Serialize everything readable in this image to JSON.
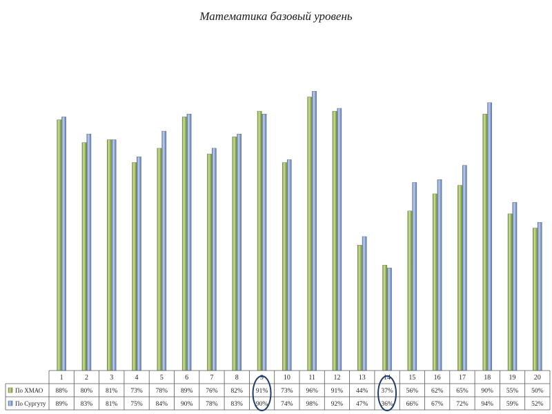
{
  "chart_data": {
    "type": "bar",
    "title": "Математика базовый уровень",
    "categories": [
      "1",
      "2",
      "3",
      "4",
      "5",
      "6",
      "7",
      "8",
      "9",
      "10",
      "11",
      "12",
      "13",
      "14",
      "15",
      "16",
      "17",
      "18",
      "19",
      "20"
    ],
    "series": [
      {
        "name": "По ХМАО",
        "color": "#9bbb59",
        "values": [
          88,
          80,
          81,
          73,
          78,
          89,
          76,
          82,
          91,
          73,
          96,
          91,
          44,
          37,
          56,
          62,
          65,
          90,
          55,
          50
        ],
        "labels": [
          "88%",
          "80%",
          "81%",
          "73%",
          "78%",
          "89%",
          "76%",
          "82%",
          "91%",
          "73%",
          "96%",
          "91%",
          "44%",
          "37%",
          "56%",
          "62%",
          "65%",
          "90%",
          "55%",
          "50%"
        ]
      },
      {
        "name": "По Сургуту",
        "color": "#8aa2cf",
        "values": [
          89,
          83,
          81,
          75,
          84,
          90,
          78,
          83,
          90,
          74,
          98,
          92,
          47,
          36,
          66,
          67,
          72,
          94,
          59,
          52
        ],
        "labels": [
          "89%",
          "83%",
          "81%",
          "75%",
          "84%",
          "90%",
          "78%",
          "83%",
          "90%",
          "74%",
          "98%",
          "92%",
          "47%",
          "36%",
          "66%",
          "67%",
          "72%",
          "94%",
          "59%",
          "52%"
        ]
      }
    ],
    "highlighted_categories": [
      "9",
      "14"
    ],
    "highlight_color": "#1f3a6e",
    "ylim": [
      0,
      100
    ],
    "grid": false,
    "legend": "data-table"
  }
}
